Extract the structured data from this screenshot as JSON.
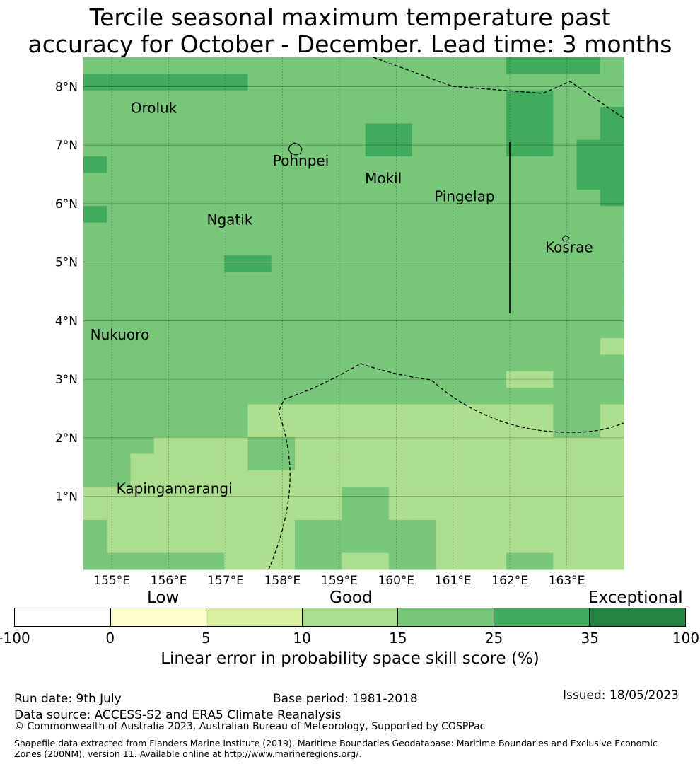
{
  "title": {
    "line1": "Tercile seasonal maximum temperature past",
    "line2": "accuracy for October - December. Lead time: 3 months"
  },
  "map": {
    "lon_range": [
      154.5,
      164.0
    ],
    "lat_range": [
      -0.25,
      8.5
    ],
    "lon_ticks": [
      {
        "value": 155,
        "label": "155°E"
      },
      {
        "value": 156,
        "label": "156°E"
      },
      {
        "value": 157,
        "label": "157°E"
      },
      {
        "value": 158,
        "label": "158°E"
      },
      {
        "value": 159,
        "label": "159°E"
      },
      {
        "value": 160,
        "label": "160°E"
      },
      {
        "value": 161,
        "label": "161°E"
      },
      {
        "value": 162,
        "label": "162°E"
      },
      {
        "value": 163,
        "label": "163°E"
      }
    ],
    "lat_ticks": [
      {
        "value": 1,
        "label": "1°N"
      },
      {
        "value": 2,
        "label": "2°N"
      },
      {
        "value": 3,
        "label": "3°N"
      },
      {
        "value": 4,
        "label": "4°N"
      },
      {
        "value": 5,
        "label": "5°N"
      },
      {
        "value": 6,
        "label": "6°N"
      },
      {
        "value": 7,
        "label": "7°N"
      },
      {
        "value": 8,
        "label": "8°N"
      }
    ],
    "places": [
      {
        "name": "Oroluk",
        "lon": 155.33,
        "lat": 7.55
      },
      {
        "name": "Pohnpei",
        "lon": 157.83,
        "lat": 6.65
      },
      {
        "name": "Mokil",
        "lon": 159.45,
        "lat": 6.35
      },
      {
        "name": "Pingelap",
        "lon": 160.67,
        "lat": 6.04
      },
      {
        "name": "Ngatik",
        "lon": 156.67,
        "lat": 5.64
      },
      {
        "name": "Kosrae",
        "lon": 162.62,
        "lat": 5.17
      },
      {
        "name": "Nukuoro",
        "lon": 154.62,
        "lat": 3.68
      },
      {
        "name": "Kapingamarangi",
        "lon": 155.08,
        "lat": 1.05
      }
    ],
    "grid_rows": [
      [
        4,
        4,
        4,
        4,
        4,
        4,
        4,
        4,
        4,
        4,
        4,
        4,
        4,
        4,
        4,
        4,
        4,
        4,
        5,
        5,
        5,
        5,
        4
      ],
      [
        5,
        5,
        5,
        5,
        5,
        5,
        5,
        4,
        4,
        4,
        4,
        4,
        4,
        4,
        4,
        4,
        4,
        4,
        4,
        4,
        4,
        4,
        4
      ],
      [
        4,
        4,
        4,
        4,
        4,
        4,
        4,
        4,
        4,
        4,
        4,
        4,
        4,
        4,
        4,
        4,
        4,
        4,
        5,
        5,
        4,
        4,
        4
      ],
      [
        4,
        4,
        4,
        4,
        4,
        4,
        4,
        4,
        4,
        4,
        4,
        4,
        4,
        4,
        4,
        4,
        4,
        4,
        5,
        5,
        4,
        4,
        5
      ],
      [
        4,
        4,
        4,
        4,
        4,
        4,
        4,
        4,
        4,
        4,
        4,
        4,
        5,
        5,
        4,
        4,
        4,
        4,
        5,
        5,
        4,
        4,
        5
      ],
      [
        4,
        4,
        4,
        4,
        4,
        4,
        4,
        4,
        4,
        4,
        4,
        4,
        5,
        5,
        4,
        4,
        4,
        4,
        5,
        5,
        4,
        5,
        5
      ],
      [
        5,
        4,
        4,
        4,
        4,
        4,
        4,
        4,
        4,
        4,
        4,
        4,
        4,
        4,
        4,
        4,
        4,
        4,
        4,
        4,
        4,
        5,
        5
      ],
      [
        4,
        4,
        4,
        4,
        4,
        4,
        4,
        4,
        4,
        4,
        4,
        4,
        4,
        4,
        4,
        4,
        4,
        4,
        4,
        4,
        4,
        5,
        5
      ],
      [
        4,
        4,
        4,
        4,
        4,
        4,
        4,
        4,
        4,
        4,
        4,
        4,
        4,
        4,
        4,
        4,
        4,
        4,
        4,
        4,
        4,
        4,
        5
      ],
      [
        5,
        4,
        4,
        4,
        4,
        4,
        4,
        4,
        4,
        4,
        4,
        4,
        4,
        4,
        4,
        4,
        4,
        4,
        4,
        4,
        4,
        4,
        4
      ],
      [
        4,
        4,
        4,
        4,
        4,
        4,
        4,
        4,
        4,
        4,
        4,
        4,
        4,
        4,
        4,
        4,
        4,
        4,
        4,
        4,
        4,
        4,
        4
      ],
      [
        4,
        4,
        4,
        4,
        4,
        4,
        4,
        4,
        4,
        4,
        4,
        4,
        4,
        4,
        4,
        4,
        4,
        4,
        4,
        4,
        4,
        4,
        4
      ],
      [
        4,
        4,
        4,
        4,
        4,
        4,
        5,
        5,
        4,
        4,
        4,
        4,
        4,
        4,
        4,
        4,
        4,
        4,
        4,
        4,
        4,
        4,
        4
      ],
      [
        4,
        4,
        4,
        4,
        4,
        4,
        4,
        4,
        4,
        4,
        4,
        4,
        4,
        4,
        4,
        4,
        4,
        4,
        4,
        4,
        4,
        4,
        4
      ],
      [
        4,
        4,
        4,
        4,
        4,
        4,
        4,
        4,
        4,
        4,
        4,
        4,
        4,
        4,
        4,
        4,
        4,
        4,
        4,
        4,
        4,
        4,
        4
      ],
      [
        4,
        4,
        4,
        4,
        4,
        4,
        4,
        4,
        4,
        4,
        4,
        4,
        4,
        4,
        4,
        4,
        4,
        4,
        4,
        4,
        4,
        4,
        4
      ],
      [
        4,
        4,
        4,
        4,
        4,
        4,
        4,
        4,
        4,
        4,
        4,
        4,
        4,
        4,
        4,
        4,
        4,
        4,
        4,
        4,
        4,
        4,
        4
      ],
      [
        4,
        4,
        4,
        4,
        4,
        4,
        4,
        4,
        4,
        4,
        4,
        4,
        4,
        4,
        4,
        4,
        4,
        4,
        4,
        4,
        4,
        4,
        3
      ],
      [
        4,
        4,
        4,
        4,
        4,
        4,
        4,
        4,
        4,
        4,
        4,
        4,
        4,
        4,
        4,
        4,
        4,
        4,
        4,
        4,
        4,
        4,
        4
      ],
      [
        4,
        4,
        4,
        4,
        4,
        4,
        4,
        4,
        4,
        4,
        4,
        4,
        4,
        4,
        4,
        4,
        4,
        4,
        3,
        3,
        4,
        4,
        4
      ],
      [
        4,
        4,
        4,
        4,
        4,
        4,
        4,
        4,
        4,
        4,
        4,
        4,
        4,
        4,
        4,
        4,
        4,
        4,
        4,
        4,
        4,
        4,
        4
      ],
      [
        4,
        4,
        4,
        4,
        4,
        4,
        4,
        3,
        3,
        3,
        3,
        3,
        3,
        3,
        3,
        3,
        3,
        3,
        3,
        3,
        4,
        4,
        3
      ],
      [
        4,
        4,
        4,
        4,
        4,
        4,
        4,
        3,
        3,
        3,
        3,
        3,
        3,
        3,
        3,
        3,
        3,
        3,
        3,
        3,
        4,
        4,
        3
      ],
      [
        4,
        4,
        4,
        3,
        3,
        3,
        3,
        4,
        4,
        3,
        3,
        3,
        3,
        3,
        3,
        3,
        3,
        3,
        3,
        3,
        3,
        3,
        3
      ],
      [
        4,
        4,
        3,
        3,
        3,
        3,
        3,
        4,
        4,
        3,
        3,
        3,
        3,
        3,
        3,
        3,
        3,
        3,
        3,
        3,
        3,
        3,
        3
      ],
      [
        4,
        4,
        3,
        3,
        3,
        3,
        3,
        3,
        3,
        3,
        3,
        3,
        3,
        3,
        3,
        3,
        3,
        3,
        3,
        3,
        3,
        3,
        3
      ],
      [
        3,
        3,
        3,
        3,
        3,
        3,
        3,
        3,
        3,
        3,
        3,
        4,
        4,
        3,
        3,
        3,
        3,
        3,
        3,
        3,
        3,
        3,
        3
      ],
      [
        3,
        3,
        3,
        3,
        3,
        3,
        3,
        3,
        3,
        3,
        3,
        4,
        4,
        3,
        3,
        3,
        3,
        3,
        3,
        3,
        3,
        3,
        3
      ],
      [
        4,
        3,
        3,
        3,
        3,
        3,
        3,
        3,
        3,
        4,
        4,
        4,
        4,
        4,
        4,
        3,
        3,
        3,
        3,
        3,
        3,
        3,
        3
      ],
      [
        4,
        3,
        3,
        3,
        3,
        3,
        3,
        3,
        3,
        4,
        4,
        4,
        4,
        4,
        4,
        3,
        3,
        3,
        3,
        3,
        3,
        3,
        3
      ],
      [
        4,
        4,
        4,
        4,
        4,
        4,
        3,
        3,
        3,
        4,
        4,
        3,
        3,
        4,
        4,
        3,
        3,
        3,
        4,
        4,
        3,
        3,
        3
      ]
    ]
  },
  "colorbar": {
    "category_low": "Low",
    "category_good": "Good",
    "category_exceptional": "Exceptional",
    "colors": [
      "#ffffff",
      "#ffffcc",
      "#d9f0a3",
      "#addd8e",
      "#78c679",
      "#41ab5d",
      "#238443"
    ],
    "ticks": [
      "-100",
      "0",
      "5",
      "10",
      "15",
      "25",
      "35",
      "100"
    ],
    "label": "Linear error in probability space skill score (%)"
  },
  "footer": {
    "run_date": "Run date: 9th July",
    "base_period": "Base period: 1981-2018",
    "issued": "Issued: 18/05/2023",
    "data_source": "Data source: ACCESS-S2 and ERA5 Climate Reanalysis",
    "copyright": "© Commonwealth of Australia 2023, Australian Bureau of Meteorology, Supported by COSPPac",
    "shapefile": "Shapefile data extracted from Flanders Marine Institute (2019), Maritime Boundaries Geodatabase: Maritime Boundaries and Exclusive Economic Zones (200NM), version 11. Available online at http://www.marineregions.org/."
  }
}
